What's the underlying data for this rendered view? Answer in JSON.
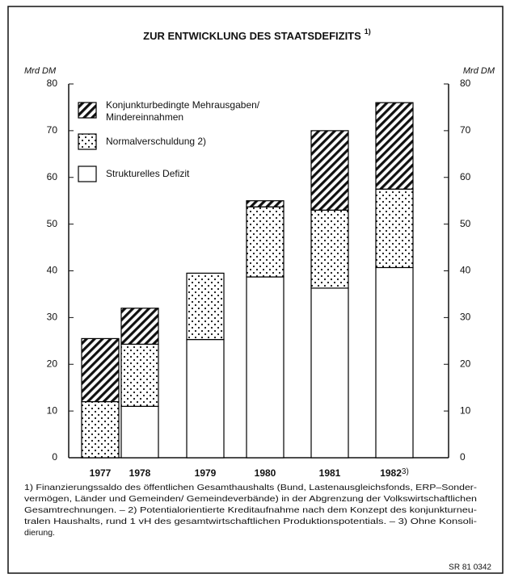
{
  "chart_data": {
    "type": "stacked_bar",
    "title": "ZUR ENTWICKLUNG DES STAATSDEFIZITS",
    "title_footnote": "1)",
    "y_label": "Mrd DM",
    "y2_label": "Mrd DM",
    "categories": [
      "1977",
      "1978",
      "1979",
      "1980",
      "1981",
      "1982"
    ],
    "category_footnotes": [
      null,
      null,
      null,
      null,
      null,
      "3)"
    ],
    "series": [
      {
        "name": "Strukturelles Defizit",
        "color": "#000000",
        "pattern": "none",
        "values": [
          0,
          11,
          25.3,
          38.7,
          36.3,
          40.7
        ]
      },
      {
        "name": "Normalverschuldung 2)",
        "color": "#000000",
        "pattern": "dots",
        "values": [
          12,
          13.3,
          14.2,
          15,
          16.7,
          16.8
        ]
      },
      {
        "name": "Konjunkturbedingte Mehrausgaben/ Mindereinnahmen",
        "color": "#000000",
        "pattern": "hatch",
        "values": [
          13.5,
          7.7,
          0,
          1.3,
          17,
          18.5
        ]
      }
    ],
    "ylim": [
      0,
      80
    ],
    "yticks": [
      0,
      10,
      20,
      30,
      40,
      50,
      60,
      70,
      80
    ],
    "y2lim": [
      0,
      80
    ],
    "y2ticks": [
      0,
      10,
      20,
      30,
      40,
      50,
      60,
      70,
      80
    ],
    "grid": false,
    "footnotes": [
      "1) Finanzierungssaldo des öffentlichen Gesamthaushalts (Bund, Lastenausgleichsfonds, ERP–Sonder-",
      "vermögen, Länder und Gemeinden/ Gemeindeverbände) in der Abgrenzung der Volkswirtschaftlichen",
      "Gesamtrechnungen. – 2) Potentialorientierte Kreditaufnahme nach dem Konzept des konjunkturneu-",
      "tralen Haushalts, rund 1 vH des gesamtwirtschaftlichen Produktionspotentials. – 3) Ohne Konsoli-",
      "dierung."
    ],
    "source_code": "SR 81 0342"
  }
}
